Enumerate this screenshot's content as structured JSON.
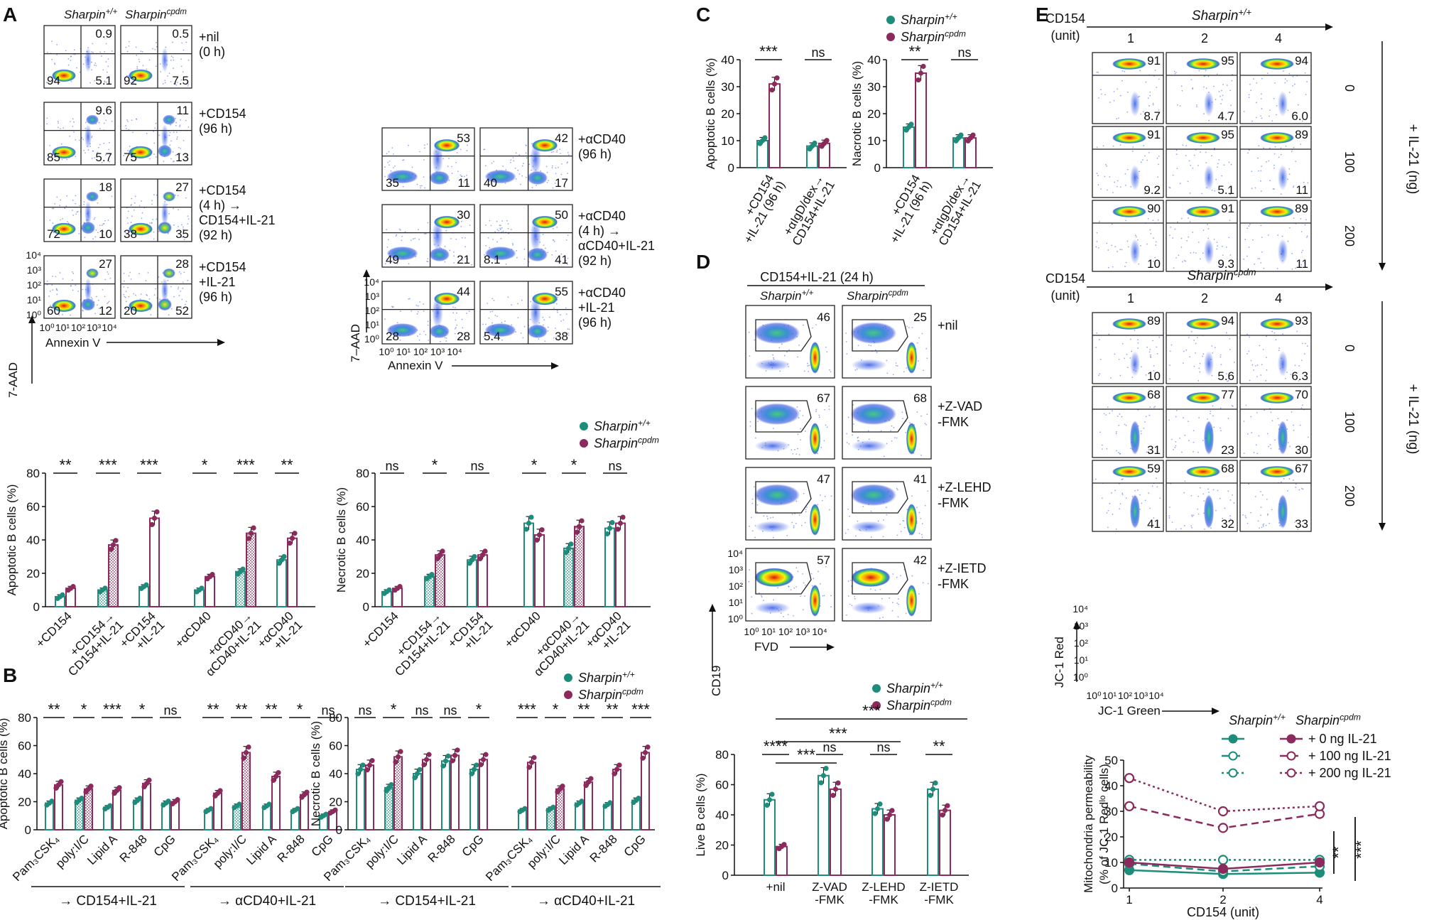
{
  "colors": {
    "wt": "#1e8c7a",
    "cpdm": "#8b2a5c",
    "wt_hatch": "#cde7e1",
    "cpdm_hatch": "#ead0dd"
  },
  "panel_labels": [
    "A",
    "B",
    "C",
    "D",
    "E"
  ],
  "genotypes": {
    "wt": "Sharpin+/+",
    "cpdm": "Sharpincpdm"
  },
  "panelA": {
    "col_headers": [
      "Sharpin+/+",
      "Sharpincpdm"
    ],
    "left_conditions": [
      {
        "label": "+nil\n(0 h)",
        "wt": {
          "ur": "0.9",
          "ll": "94",
          "lr": "5.1"
        },
        "cpdm": {
          "ur": "0.5",
          "ll": "92",
          "lr": "7.5"
        }
      },
      {
        "label": "+CD154\n(96 h)",
        "wt": {
          "ur": "9.6",
          "ll": "85",
          "lr": "5.7"
        },
        "cpdm": {
          "ur": "11",
          "ll": "75",
          "lr": "13"
        }
      },
      {
        "label": "+CD154\n(4 h) →\nCD154+IL-21\n(92 h)",
        "wt": {
          "ur": "18",
          "ll": "72",
          "lr": "10"
        },
        "cpdm": {
          "ur": "27",
          "ll": "38",
          "lr": "35"
        }
      },
      {
        "label": "+CD154\n+IL-21\n(96 h)",
        "wt": {
          "ur": "27",
          "ll": "60",
          "lr": "12"
        },
        "cpdm": {
          "ur": "28",
          "ll": "20",
          "lr": "52"
        }
      }
    ],
    "right_conditions": [
      {
        "label": "+αCD40\n(96 h)",
        "wt": {
          "ur": "53",
          "ll": "35",
          "lr": "11"
        },
        "cpdm": {
          "ur": "42",
          "ll": "40",
          "lr": "17"
        }
      },
      {
        "label": "+αCD40\n(4 h) →\nαCD40+IL-21\n(92 h)",
        "wt": {
          "ur": "30",
          "ll": "49",
          "lr": "21"
        },
        "cpdm": {
          "ur": "50",
          "ll": "8.1",
          "lr": "41"
        }
      },
      {
        "label": "+αCD40\n+IL-21\n(96 h)",
        "wt": {
          "ur": "44",
          "ll": "28",
          "lr": "28"
        },
        "cpdm": {
          "ur": "55",
          "ll": "5.4",
          "lr": "38"
        }
      }
    ],
    "y_axis": "7-AAD",
    "y_axis_right": "7–AAD",
    "x_axis": "Annexin V",
    "log_ticks": [
      "10⁰",
      "10¹",
      "10²",
      "10³",
      "10⁴"
    ]
  },
  "chart_data": [
    {
      "type": "bar",
      "title": "Panel A apoptotic",
      "ylabel": "Apoptotic B cells (%)",
      "ylim": [
        0,
        80
      ],
      "yticks": [
        "0",
        "20",
        "40",
        "60",
        "80"
      ],
      "categories": [
        "+CD154",
        "+CD154→\nCD154+IL-21",
        "+CD154\n+IL-21",
        "+αCD40",
        "+αCD40→\nαCD40+IL-21",
        "+αCD40\n+IL-21"
      ],
      "series": [
        {
          "name": "Sharpin+/+",
          "values": [
            6,
            10,
            12,
            10,
            21,
            28
          ]
        },
        {
          "name": "Sharpincpdm",
          "values": [
            11,
            37,
            53,
            18,
            44,
            41
          ]
        }
      ],
      "significance": [
        "**",
        "***",
        "***",
        "*",
        "***",
        "**"
      ]
    },
    {
      "type": "bar",
      "title": "Panel A necrotic",
      "ylabel": "Necrotic B cells (%)",
      "ylim": [
        0,
        80
      ],
      "yticks": [
        "0",
        "20",
        "40",
        "60",
        "80"
      ],
      "categories": [
        "+CD154",
        "+CD154→\nCD154+IL-21",
        "+CD154\n+IL-21",
        "+αCD40",
        "+αCD40→\nαCD40+IL-21",
        "+αCD40\n+IL-21"
      ],
      "series": [
        {
          "name": "Sharpin+/+",
          "values": [
            9,
            18,
            28,
            50,
            35,
            47
          ]
        },
        {
          "name": "Sharpincpdm",
          "values": [
            11,
            31,
            31,
            43,
            48,
            50
          ]
        }
      ],
      "significance": [
        "ns",
        "*",
        "ns",
        "*",
        "*",
        "ns"
      ]
    },
    {
      "type": "bar",
      "title": "Panel B apoptotic",
      "ylabel": "Apoptotic B cells (%)",
      "ylim": [
        0,
        80
      ],
      "yticks": [
        "0",
        "20",
        "40",
        "60",
        "80"
      ],
      "categories": [
        "Pam₃CSK₄",
        "poly:I/C",
        "Lipid A",
        "R-848",
        "CpG",
        "Pam₃CSK₄",
        "poly:I/C",
        "Lipid A",
        "R-848",
        "CpG"
      ],
      "series": [
        {
          "name": "Sharpin+/+",
          "values": [
            19,
            21,
            16,
            21,
            19,
            14,
            17,
            17,
            14,
            10
          ]
        },
        {
          "name": "Sharpincpdm",
          "values": [
            32,
            29,
            28,
            33,
            20,
            26,
            55,
            38,
            25,
            13
          ]
        }
      ],
      "significance": [
        "**",
        "*",
        "***",
        "*",
        "ns",
        "**",
        "**",
        "**",
        "*",
        "ns"
      ],
      "group_labels": [
        "→ CD154+IL-21",
        "→ αCD40+IL-21"
      ]
    },
    {
      "type": "bar",
      "title": "Panel B necrotic",
      "ylabel": "Necrotic B cells (%)",
      "ylim": [
        0,
        80
      ],
      "yticks": [
        "0",
        "20",
        "40",
        "60",
        "80"
      ],
      "categories": [
        "Pam₃CSK₄",
        "poly:I/C",
        "Lipid A",
        "R-848",
        "CpG",
        "Pam₃CSK₄",
        "poly:I/C",
        "Lipid A",
        "R-848",
        "CpG"
      ],
      "series": [
        {
          "name": "Sharpin+/+",
          "values": [
            43,
            30,
            40,
            49,
            43,
            14,
            15,
            19,
            18,
            21
          ]
        },
        {
          "name": "Sharpincpdm",
          "values": [
            46,
            52,
            50,
            53,
            50,
            48,
            29,
            34,
            43,
            55
          ]
        }
      ],
      "significance": [
        "ns",
        "*",
        "ns",
        "ns",
        "*",
        "***",
        "*",
        "**",
        "**",
        "***"
      ],
      "group_labels": [
        "→ CD154+IL-21",
        "→ αCD40+IL-21"
      ]
    },
    {
      "type": "bar",
      "title": "Panel C apoptotic",
      "ylabel": "Apoptotic B cells (%)",
      "ylim": [
        0,
        40
      ],
      "yticks": [
        "0",
        "10",
        "20",
        "30",
        "40"
      ],
      "categories": [
        "+CD154\n+IL-21 (96 h)",
        "+αIgD/dex→\nCD154+IL-21"
      ],
      "series": [
        {
          "name": "Sharpin+/+",
          "values": [
            10,
            8
          ]
        },
        {
          "name": "Sharpincpdm",
          "values": [
            31,
            9
          ]
        }
      ],
      "significance": [
        "***",
        "ns"
      ]
    },
    {
      "type": "bar",
      "title": "Panel C necrotic",
      "ylabel": "Nacrotic B cells (%)",
      "ylim": [
        0,
        40
      ],
      "yticks": [
        "0",
        "10",
        "20",
        "30",
        "40"
      ],
      "categories": [
        "+CD154\n+IL-21 (96 h)",
        "+αIgD/dex→\nCD154+IL-21"
      ],
      "series": [
        {
          "name": "Sharpin+/+",
          "values": [
            15,
            11
          ]
        },
        {
          "name": "Sharpincpdm",
          "values": [
            35,
            11
          ]
        }
      ],
      "significance": [
        "**",
        "ns"
      ]
    },
    {
      "type": "bar",
      "title": "Panel D live",
      "ylabel": "Live B cells (%)",
      "ylim": [
        0,
        80
      ],
      "yticks": [
        "0",
        "20",
        "40",
        "60",
        "80"
      ],
      "categories": [
        "+nil",
        "Z-VAD\n-FMK",
        "Z-LEHD\n-FMK",
        "Z-IETD\n-FMK"
      ],
      "series": [
        {
          "name": "Sharpin+/+",
          "values": [
            50,
            66,
            44,
            57
          ]
        },
        {
          "name": "Sharpincpdm",
          "values": [
            19,
            57,
            40,
            43
          ]
        }
      ],
      "significance": [
        "****",
        "ns",
        "ns",
        "**"
      ],
      "cross_significance": [
        "***",
        "***",
        "***"
      ]
    },
    {
      "type": "line",
      "title": "Panel E mitochondria",
      "xlabel": "CD154 (unit)",
      "ylabel": "Mitochondria permeability\n(% of JC-1 Redˡᵒ cells)",
      "x": [
        "1",
        "2",
        "4"
      ],
      "ylim": [
        0,
        50
      ],
      "yticks": [
        "0",
        "10",
        "20",
        "30",
        "40",
        "50"
      ],
      "series": [
        {
          "name": "Sharpin+/+ 0 ng IL-21",
          "values": [
            7,
            5.5,
            6
          ]
        },
        {
          "name": "Sharpin+/+ 100 ng IL-21",
          "values": [
            9.5,
            6.5,
            8.5
          ]
        },
        {
          "name": "Sharpin+/+ 200 ng IL-21",
          "values": [
            11,
            11,
            11
          ]
        },
        {
          "name": "Sharpincpdm 0 ng IL-21",
          "values": [
            10,
            7.5,
            10
          ]
        },
        {
          "name": "Sharpincpdm 100 ng IL-21",
          "values": [
            32,
            23.5,
            29
          ]
        },
        {
          "name": "Sharpincpdm 200 ng IL-21",
          "values": [
            43,
            30,
            32
          ]
        }
      ],
      "significance": [
        "**",
        "***"
      ]
    }
  ],
  "panelB": {
    "group_labels": [
      "→ CD154+IL-21",
      "→ αCD40+IL-21",
      "→ CD154+IL-21",
      "→ αCD40+IL-21"
    ]
  },
  "panelD": {
    "header": "CD154+IL-21 (24 h)",
    "col_headers": [
      "Sharpin+/+",
      "Sharpincpdm"
    ],
    "conditions": [
      {
        "label": "+nil",
        "wt": "46",
        "cpdm": "25"
      },
      {
        "label": "+Z-VAD\n-FMK",
        "wt": "67",
        "cpdm": "68"
      },
      {
        "label": "+Z-LEHD\n-FMK",
        "wt": "47",
        "cpdm": "41"
      },
      {
        "label": "+Z-IETD\n-FMK",
        "wt": "57",
        "cpdm": "42"
      }
    ],
    "y_axis": "CD19",
    "x_axis": "FVD"
  },
  "panelE": {
    "top_header": "Sharpin+/+",
    "bottom_header": "Sharpincpdm",
    "cd154_label": "CD154\n(unit)",
    "cd154_units": [
      "1",
      "2",
      "4"
    ],
    "il21_doses": [
      "0",
      "100",
      "200"
    ],
    "il21_label": "+ IL-21 (ng)",
    "wt_grid": [
      [
        [
          "91",
          "8.7"
        ],
        [
          "95",
          "4.7"
        ],
        [
          "94",
          "6.0"
        ]
      ],
      [
        [
          "91",
          "9.2"
        ],
        [
          "95",
          "5.1"
        ],
        [
          "89",
          "11"
        ]
      ],
      [
        [
          "90",
          "10"
        ],
        [
          "91",
          "9.3"
        ],
        [
          "89",
          "11"
        ]
      ]
    ],
    "cpdm_grid": [
      [
        [
          "89",
          "10"
        ],
        [
          "94",
          "5.6"
        ],
        [
          "93",
          "6.3"
        ]
      ],
      [
        [
          "68",
          "31"
        ],
        [
          "77",
          "23"
        ],
        [
          "70",
          "30"
        ]
      ],
      [
        [
          "59",
          "41"
        ],
        [
          "68",
          "32"
        ],
        [
          "67",
          "33"
        ]
      ]
    ],
    "y_axis": "JC-1 Red",
    "x_axis": "JC-1 Green",
    "legend_headers": [
      "Sharpin+/+",
      "Sharpincpdm"
    ],
    "legend_rows": [
      "+    0 ng IL-21",
      "+ 100 ng IL-21",
      "+ 200 ng IL-21"
    ]
  }
}
